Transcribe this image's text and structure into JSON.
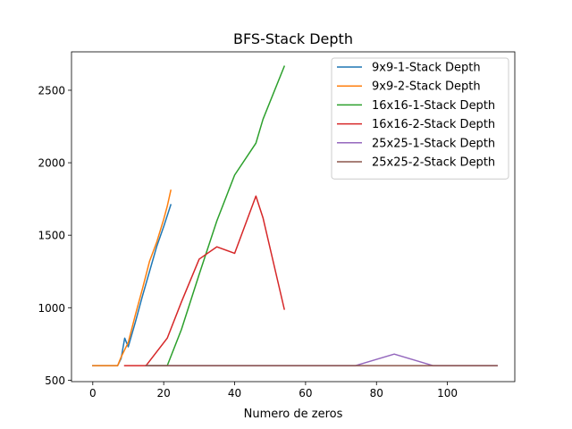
{
  "chart_data": {
    "type": "line",
    "title": "BFS-Stack Depth",
    "xlabel": "Numero de zeros",
    "ylabel": "",
    "xlim": [
      -6,
      119
    ],
    "ylim": [
      490,
      2765
    ],
    "xticks": [
      0,
      20,
      40,
      60,
      80,
      100
    ],
    "yticks": [
      500,
      1000,
      1500,
      2000,
      2500
    ],
    "grid": false,
    "legend_position": "top-right",
    "series": [
      {
        "name": "9x9-1-Stack Depth",
        "color": "#1f77b4",
        "points": [
          [
            0,
            600
          ],
          [
            7,
            600
          ],
          [
            8,
            650
          ],
          [
            9,
            790
          ],
          [
            10,
            730
          ],
          [
            12,
            900
          ],
          [
            14,
            1080
          ],
          [
            16,
            1250
          ],
          [
            18,
            1420
          ],
          [
            20,
            1560
          ],
          [
            22,
            1710
          ]
        ]
      },
      {
        "name": "9x9-2-Stack Depth",
        "color": "#ff7f0e",
        "points": [
          [
            0,
            600
          ],
          [
            7,
            600
          ],
          [
            8,
            660
          ],
          [
            10,
            760
          ],
          [
            12,
            950
          ],
          [
            14,
            1130
          ],
          [
            16,
            1320
          ],
          [
            18,
            1450
          ],
          [
            20,
            1610
          ],
          [
            21,
            1700
          ],
          [
            22,
            1810
          ]
        ]
      },
      {
        "name": "16x16-1-Stack Depth",
        "color": "#2ca02c",
        "points": [
          [
            15,
            600
          ],
          [
            20,
            600
          ],
          [
            21,
            600
          ],
          [
            25,
            850
          ],
          [
            30,
            1230
          ],
          [
            35,
            1600
          ],
          [
            40,
            1915
          ],
          [
            46,
            2135
          ],
          [
            48,
            2300
          ],
          [
            54,
            2665
          ]
        ]
      },
      {
        "name": "16x16-2-Stack Depth",
        "color": "#d62728",
        "points": [
          [
            9,
            600
          ],
          [
            15,
            600
          ],
          [
            21,
            790
          ],
          [
            25,
            1040
          ],
          [
            30,
            1335
          ],
          [
            35,
            1420
          ],
          [
            40,
            1375
          ],
          [
            46,
            1770
          ],
          [
            48,
            1620
          ],
          [
            54,
            990
          ]
        ]
      },
      {
        "name": "25x25-1-Stack Depth",
        "color": "#9467bd",
        "points": [
          [
            15,
            600
          ],
          [
            30,
            600
          ],
          [
            50,
            600
          ],
          [
            74,
            600
          ],
          [
            85,
            680
          ],
          [
            96,
            600
          ],
          [
            105,
            600
          ],
          [
            114,
            600
          ]
        ]
      },
      {
        "name": "25x25-2-Stack Depth",
        "color": "#8c564b",
        "points": [
          [
            15,
            600
          ],
          [
            30,
            600
          ],
          [
            50,
            600
          ],
          [
            74,
            600
          ],
          [
            85,
            600
          ],
          [
            96,
            600
          ],
          [
            105,
            600
          ],
          [
            114,
            600
          ]
        ]
      }
    ]
  }
}
